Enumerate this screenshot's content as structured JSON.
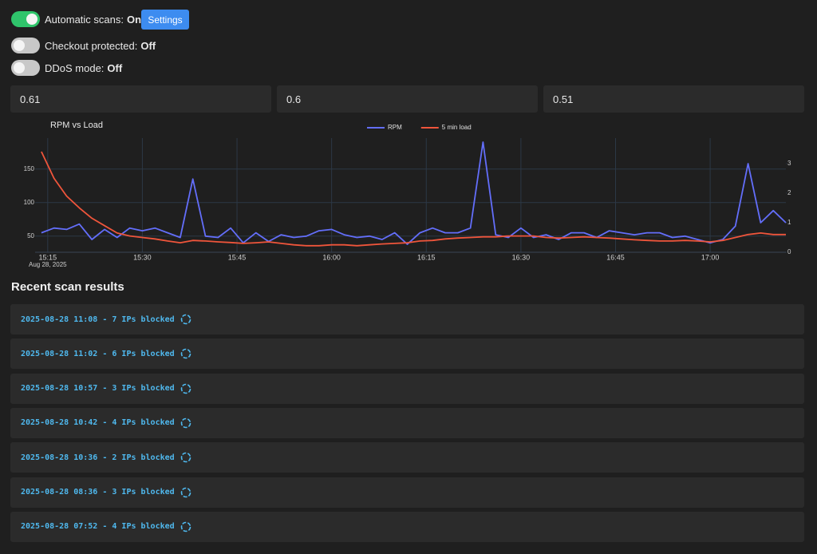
{
  "toggles": [
    {
      "label": "Automatic scans:",
      "state": "On",
      "on": true
    },
    {
      "label": "Checkout protected:",
      "state": "Off",
      "on": false
    },
    {
      "label": "DDoS mode:",
      "state": "Off",
      "on": false
    }
  ],
  "settings_button": "Settings",
  "stats": [
    0.61,
    0.6,
    0.51
  ],
  "chart_data": {
    "type": "line",
    "title": "RPM vs Load",
    "x_date_label": "Aug 28, 2025",
    "x": [
      "15:14",
      "15:16",
      "15:18",
      "15:20",
      "15:22",
      "15:24",
      "15:26",
      "15:28",
      "15:30",
      "15:32",
      "15:34",
      "15:36",
      "15:38",
      "15:40",
      "15:42",
      "15:44",
      "15:46",
      "15:48",
      "15:50",
      "15:52",
      "15:54",
      "15:56",
      "15:58",
      "16:00",
      "16:02",
      "16:04",
      "16:06",
      "16:08",
      "16:10",
      "16:12",
      "16:14",
      "16:16",
      "16:18",
      "16:20",
      "16:22",
      "16:24",
      "16:26",
      "16:28",
      "16:30",
      "16:32",
      "16:34",
      "16:36",
      "16:38",
      "16:40",
      "16:42",
      "16:44",
      "16:46",
      "16:48",
      "16:50",
      "16:52",
      "16:54",
      "16:56",
      "16:58",
      "17:00",
      "17:02",
      "17:04",
      "17:06",
      "17:08",
      "17:10",
      "17:12"
    ],
    "series": [
      {
        "name": "RPM",
        "color": "#636efa",
        "axis": "y",
        "values": [
          55,
          62,
          60,
          68,
          45,
          60,
          48,
          62,
          58,
          62,
          55,
          48,
          135,
          50,
          48,
          62,
          40,
          55,
          42,
          52,
          48,
          50,
          58,
          60,
          52,
          48,
          50,
          45,
          55,
          38,
          55,
          62,
          55,
          55,
          62,
          190,
          52,
          48,
          62,
          48,
          52,
          45,
          55,
          55,
          48,
          58,
          55,
          52,
          55,
          55,
          48,
          50,
          45,
          40,
          45,
          65,
          158,
          70,
          88,
          70
        ]
      },
      {
        "name": "5 min load",
        "color": "#ef553b",
        "axis": "y2",
        "values": [
          3.4,
          2.5,
          1.9,
          1.5,
          1.15,
          0.9,
          0.65,
          0.55,
          0.5,
          0.45,
          0.38,
          0.32,
          0.4,
          0.38,
          0.35,
          0.33,
          0.3,
          0.32,
          0.35,
          0.3,
          0.25,
          0.22,
          0.22,
          0.25,
          0.25,
          0.22,
          0.25,
          0.28,
          0.3,
          0.32,
          0.38,
          0.4,
          0.45,
          0.48,
          0.5,
          0.52,
          0.52,
          0.55,
          0.55,
          0.55,
          0.5,
          0.48,
          0.5,
          0.52,
          0.5,
          0.48,
          0.45,
          0.42,
          0.4,
          0.38,
          0.38,
          0.4,
          0.38,
          0.35,
          0.4,
          0.5,
          0.6,
          0.65,
          0.6,
          0.6
        ]
      }
    ],
    "xlim": [
      "15:13",
      "17:12"
    ],
    "xticks": [
      "15:15",
      "15:30",
      "15:45",
      "16:00",
      "16:15",
      "16:30",
      "16:45",
      "17:00"
    ],
    "ylim": [
      26,
      196
    ],
    "yticks": [
      50,
      100,
      150
    ],
    "y2lim": [
      0,
      3.86
    ],
    "y2ticks": [
      0,
      1,
      2,
      3
    ],
    "grid": true,
    "legend": "top"
  },
  "recent": {
    "title": "Recent scan results",
    "items": [
      "2025-08-28 11:08 - 7 IPs blocked",
      "2025-08-28 11:02 - 6 IPs blocked",
      "2025-08-28 10:57 - 3 IPs blocked",
      "2025-08-28 10:42 - 4 IPs blocked",
      "2025-08-28 10:36 - 2 IPs blocked",
      "2025-08-28 08:36 - 3 IPs blocked",
      "2025-08-28 07:52 - 4 IPs blocked"
    ]
  }
}
